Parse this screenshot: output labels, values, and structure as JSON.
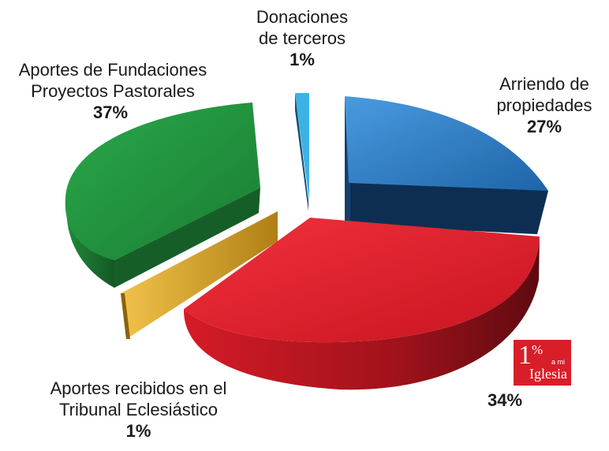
{
  "chart_data": {
    "type": "pie",
    "style": "3d-exploded",
    "title": "",
    "slices": [
      {
        "label": "Arriendo de propiedades",
        "value": 27,
        "pct_label": "27%",
        "color": "#2b78c2"
      },
      {
        "label": "Aportes recibidos en el Tribunal Eclesiástico",
        "value": 1,
        "pct_label": "1%",
        "color": "#e0b033"
      },
      {
        "label": "Aportes de Fundaciones Proyectos Pastorales",
        "value": 37,
        "pct_label": "37%",
        "color": "#20913a"
      },
      {
        "label": "Donaciones de terceros",
        "value": 1,
        "pct_label": "1%",
        "color": "#3cb2e6"
      },
      {
        "label": "",
        "value": 34,
        "pct_label": "34%",
        "color": "#e21c2a"
      }
    ],
    "labels": {
      "arriendo": {
        "line1": "Arriendo de",
        "line2": "propiedades",
        "pct": "27%"
      },
      "donaciones": {
        "line1": "Donaciones",
        "line2": "de terceros",
        "pct": "1%"
      },
      "fundaciones": {
        "line1": "Aportes de Fundaciones",
        "line2": "Proyectos  Pastorales",
        "pct": "37%"
      },
      "tribunal": {
        "line1": "Aportes recibidos en el",
        "line2": "Tribunal Eclesiástico",
        "pct": "1%"
      },
      "unnamed": {
        "pct": "34%"
      }
    }
  },
  "logo": {
    "one": "1",
    "percent": "%",
    "ami": "a mi",
    "iglesia": "Iglesia",
    "color": "#d81e28"
  }
}
